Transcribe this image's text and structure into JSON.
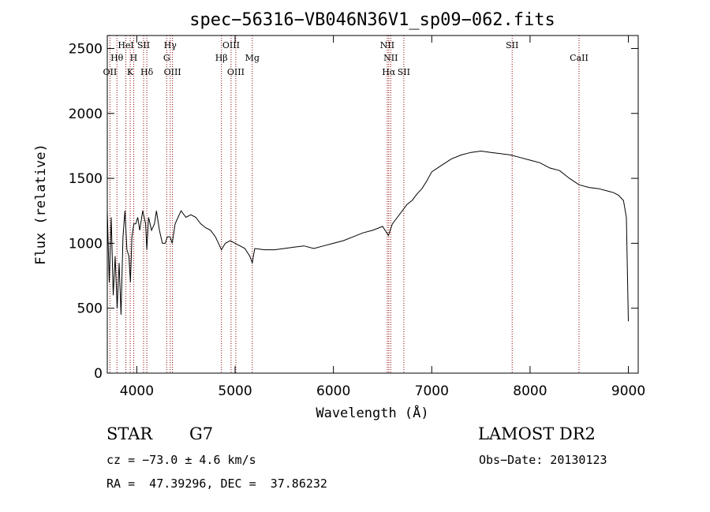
{
  "chart_data": {
    "type": "line",
    "title": "spec−56316−VB046N36V1_sp09−062.fits",
    "xlabel": "Wavelength (Å)",
    "ylabel": "Flux (relative)",
    "xlim": [
      3700,
      9100
    ],
    "ylim": [
      0,
      2600
    ],
    "xticks": [
      4000,
      5000,
      6000,
      7000,
      8000,
      9000
    ],
    "yticks": [
      0,
      500,
      1000,
      1500,
      2000,
      2500
    ],
    "grid": false,
    "line_color": "#000000",
    "marker_color": "#8b0000",
    "spectrum": {
      "x": [
        3700,
        3720,
        3740,
        3760,
        3780,
        3800,
        3820,
        3840,
        3860,
        3880,
        3900,
        3920,
        3935,
        3950,
        3970,
        3990,
        4010,
        4030,
        4060,
        4090,
        4102,
        4120,
        4150,
        4180,
        4200,
        4230,
        4260,
        4290,
        4310,
        4340,
        4360,
        4390,
        4420,
        4450,
        4500,
        4550,
        4600,
        4650,
        4700,
        4750,
        4800,
        4861,
        4900,
        4950,
        5000,
        5050,
        5100,
        5150,
        5175,
        5200,
        5300,
        5400,
        5500,
        5600,
        5700,
        5800,
        5900,
        6000,
        6100,
        6200,
        6300,
        6400,
        6500,
        6560,
        6600,
        6650,
        6700,
        6750,
        6800,
        6850,
        6900,
        6950,
        7000,
        7100,
        7200,
        7300,
        7400,
        7500,
        7600,
        7700,
        7800,
        7900,
        8000,
        8100,
        8200,
        8300,
        8400,
        8500,
        8600,
        8700,
        8800,
        8850,
        8900,
        8950,
        8980,
        9000
      ],
      "y": [
        1250,
        700,
        1200,
        600,
        900,
        500,
        850,
        450,
        1050,
        1250,
        950,
        900,
        700,
        1050,
        1150,
        1150,
        1200,
        1100,
        1250,
        1150,
        950,
        1200,
        1100,
        1150,
        1250,
        1100,
        1000,
        1000,
        1050,
        1050,
        1000,
        1150,
        1200,
        1250,
        1200,
        1220,
        1200,
        1150,
        1120,
        1100,
        1050,
        950,
        1000,
        1020,
        1000,
        980,
        960,
        900,
        850,
        960,
        950,
        950,
        960,
        970,
        980,
        960,
        980,
        1000,
        1020,
        1050,
        1080,
        1100,
        1130,
        1060,
        1150,
        1200,
        1250,
        1300,
        1330,
        1380,
        1420,
        1480,
        1550,
        1600,
        1650,
        1680,
        1700,
        1710,
        1700,
        1690,
        1680,
        1660,
        1640,
        1620,
        1580,
        1560,
        1500,
        1450,
        1430,
        1420,
        1400,
        1390,
        1370,
        1330,
        1200,
        400
      ]
    },
    "lines": [
      {
        "label": "HeI",
        "x": 3889,
        "row": 1
      },
      {
        "label": "SII",
        "x": 4069,
        "row": 1
      },
      {
        "label": "Hγ",
        "x": 4340,
        "row": 1
      },
      {
        "label": "OIII",
        "x": 4959,
        "row": 1
      },
      {
        "label": "NII",
        "x": 6548,
        "row": 1
      },
      {
        "label": "SII",
        "x": 7818,
        "row": 1
      },
      {
        "label": "Hθ",
        "x": 3798,
        "row": 2
      },
      {
        "label": "H",
        "x": 3968,
        "row": 2
      },
      {
        "label": "G",
        "x": 4304,
        "row": 2
      },
      {
        "label": "Hβ",
        "x": 4861,
        "row": 2
      },
      {
        "label": "Mg",
        "x": 5175,
        "row": 2
      },
      {
        "label": "NII",
        "x": 6583,
        "row": 2
      },
      {
        "label": "CaII",
        "x": 8498,
        "row": 2
      },
      {
        "label": "OII",
        "x": 3727,
        "row": 3
      },
      {
        "label": "K",
        "x": 3933,
        "row": 3
      },
      {
        "label": "Hδ",
        "x": 4102,
        "row": 3
      },
      {
        "label": "OIII",
        "x": 4363,
        "row": 3
      },
      {
        "label": "OIII",
        "x": 5007,
        "row": 3
      },
      {
        "label": "Hα",
        "x": 6563,
        "row": 3
      },
      {
        "label": "SII",
        "x": 6716,
        "row": 3
      }
    ]
  },
  "info": {
    "class": "STAR",
    "subclass": "G7",
    "survey": "LAMOST DR2",
    "cz": "cz = −73.0 ± 4.6 km/s",
    "obs_date": "Obs−Date: 20130123",
    "coords": "RA =  47.39296, DEC =  37.86232"
  }
}
